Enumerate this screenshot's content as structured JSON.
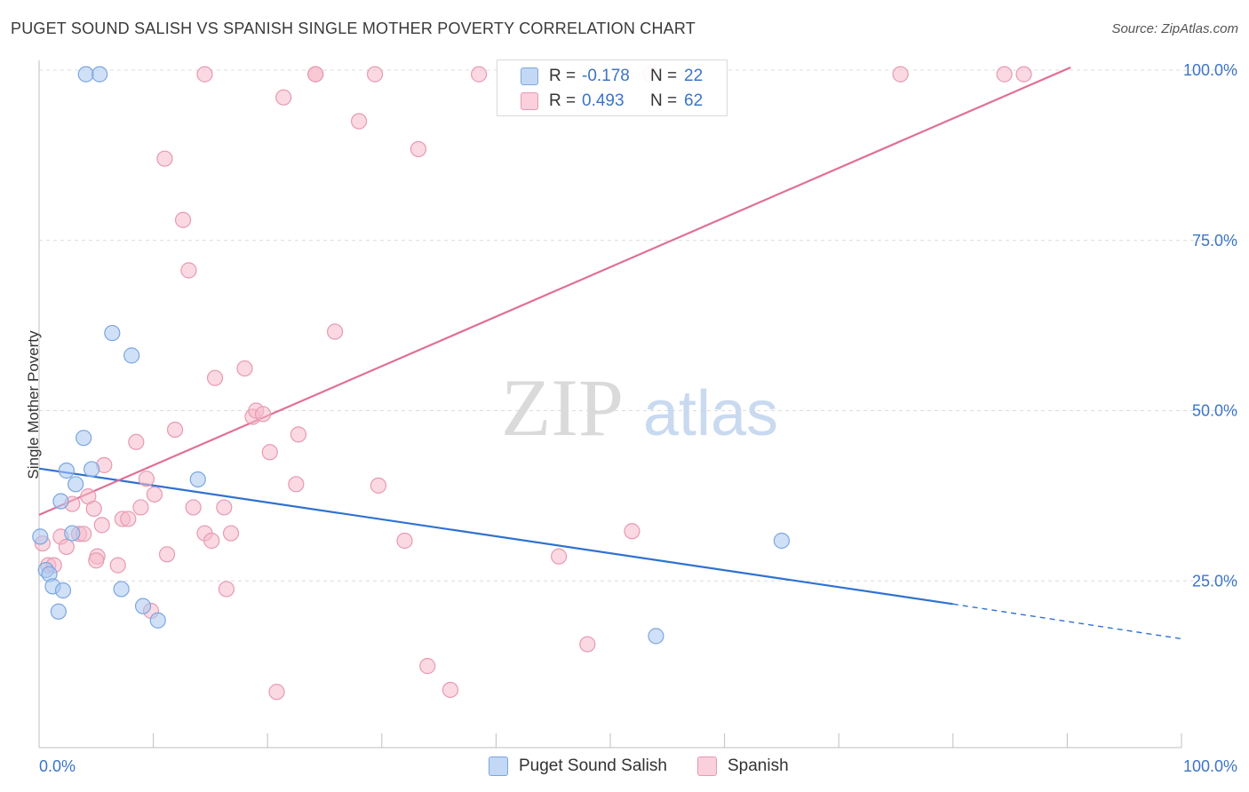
{
  "header": {
    "title": "PUGET SOUND SALISH VS SPANISH SINGLE MOTHER POVERTY CORRELATION CHART",
    "source": "Source: ZipAtlas.com"
  },
  "watermark": {
    "zip": "ZIP",
    "atlas": "atlas"
  },
  "legend": {
    "r_label": "R =",
    "n_label": "N =",
    "rows": [
      {
        "name": "Puget Sound Salish",
        "r": "-0.178",
        "n": "22",
        "color": "#a9c8f0"
      },
      {
        "name": "Spanish",
        "r": "0.493",
        "n": "62",
        "color": "#f6b9cb"
      }
    ]
  },
  "colors": {
    "blue_fill": "#a9c8f0",
    "blue_stroke": "#7aa6e0",
    "blue_line": "#2f72d0",
    "pink_fill": "#f6b9cb",
    "pink_stroke": "#e79ab2",
    "pink_line": "#e07095",
    "axis_text": "#3b74c7",
    "grid": "#dcdcdc"
  },
  "chart_data": {
    "type": "scatter",
    "title": "PUGET SOUND SALISH VS SPANISH SINGLE MOTHER POVERTY CORRELATION CHART",
    "xlabel": "",
    "ylabel": "Single Mother Poverty",
    "xlim": [
      0,
      100
    ],
    "ylim": [
      0,
      102
    ],
    "x_ticks": [
      "0.0%",
      "100.0%"
    ],
    "y_ticks": [
      {
        "value": 25,
        "label": "25.0%"
      },
      {
        "value": 50,
        "label": "50.0%"
      },
      {
        "value": 75,
        "label": "75.0%"
      },
      {
        "value": 100,
        "label": "100.0%"
      }
    ],
    "grid": true,
    "legend_position": "top-center",
    "series": [
      {
        "name": "Puget Sound Salish",
        "r": -0.178,
        "n": 22,
        "trend": {
          "x0": 0,
          "y0": 41.5,
          "x1": 80,
          "y1": 21.6,
          "dash_to_x": 100,
          "dash_to_y": 16.5
        },
        "points": [
          [
            0.1,
            31.5
          ],
          [
            0.6,
            26.6
          ],
          [
            0.9,
            26.0
          ],
          [
            1.2,
            24.2
          ],
          [
            1.7,
            20.5
          ],
          [
            2.1,
            23.6
          ],
          [
            1.9,
            36.7
          ],
          [
            2.4,
            41.2
          ],
          [
            2.9,
            32.0
          ],
          [
            3.2,
            39.2
          ],
          [
            3.9,
            46.0
          ],
          [
            4.6,
            41.4
          ],
          [
            4.1,
            99.4
          ],
          [
            5.3,
            99.4
          ],
          [
            6.4,
            61.4
          ],
          [
            8.1,
            58.1
          ],
          [
            7.2,
            23.8
          ],
          [
            9.1,
            21.3
          ],
          [
            10.4,
            19.2
          ],
          [
            13.9,
            39.9
          ],
          [
            54.0,
            16.9
          ],
          [
            65.0,
            30.9
          ]
        ]
      },
      {
        "name": "Spanish",
        "r": 0.493,
        "n": 62,
        "trend": {
          "x0": 0,
          "y0": 34.7,
          "x1": 90.3,
          "y1": 100.4
        },
        "points": [
          [
            0.3,
            30.5
          ],
          [
            0.8,
            27.3
          ],
          [
            1.3,
            27.3
          ],
          [
            1.9,
            31.5
          ],
          [
            2.4,
            30.0
          ],
          [
            2.9,
            36.3
          ],
          [
            3.5,
            31.9
          ],
          [
            3.9,
            31.9
          ],
          [
            4.3,
            37.4
          ],
          [
            4.8,
            35.6
          ],
          [
            5.1,
            28.6
          ],
          [
            5.5,
            33.2
          ],
          [
            5.7,
            42.0
          ],
          [
            6.9,
            27.3
          ],
          [
            7.3,
            34.1
          ],
          [
            7.8,
            34.1
          ],
          [
            8.5,
            45.4
          ],
          [
            8.9,
            35.8
          ],
          [
            9.4,
            40.0
          ],
          [
            10.1,
            37.7
          ],
          [
            11.2,
            28.9
          ],
          [
            11.0,
            87.0
          ],
          [
            11.9,
            47.2
          ],
          [
            12.6,
            78.0
          ],
          [
            13.1,
            70.6
          ],
          [
            13.5,
            35.8
          ],
          [
            14.5,
            32.0
          ],
          [
            15.4,
            54.8
          ],
          [
            15.1,
            30.9
          ],
          [
            16.2,
            35.8
          ],
          [
            16.8,
            32.0
          ],
          [
            18.0,
            56.2
          ],
          [
            16.4,
            23.8
          ],
          [
            18.7,
            49.1
          ],
          [
            19.0,
            50.0
          ],
          [
            19.6,
            49.5
          ],
          [
            20.2,
            43.9
          ],
          [
            20.8,
            8.7
          ],
          [
            21.4,
            96.0
          ],
          [
            22.5,
            39.2
          ],
          [
            22.7,
            46.5
          ],
          [
            24.2,
            99.4
          ],
          [
            24.2,
            99.4
          ],
          [
            25.9,
            61.6
          ],
          [
            28.0,
            92.5
          ],
          [
            29.4,
            99.4
          ],
          [
            29.7,
            39.0
          ],
          [
            32.0,
            30.9
          ],
          [
            33.2,
            88.4
          ],
          [
            34.0,
            12.5
          ],
          [
            36.0,
            9.0
          ],
          [
            38.5,
            99.4
          ],
          [
            45.5,
            28.6
          ],
          [
            48.0,
            15.7
          ],
          [
            51.9,
            32.3
          ],
          [
            53.5,
            99.4
          ],
          [
            75.4,
            99.4
          ],
          [
            84.5,
            99.4
          ],
          [
            86.2,
            99.4
          ],
          [
            9.8,
            20.6
          ],
          [
            14.5,
            99.4
          ],
          [
            5.0,
            28.0
          ]
        ]
      }
    ]
  },
  "bottom_legend": [
    "Puget Sound Salish",
    "Spanish"
  ]
}
